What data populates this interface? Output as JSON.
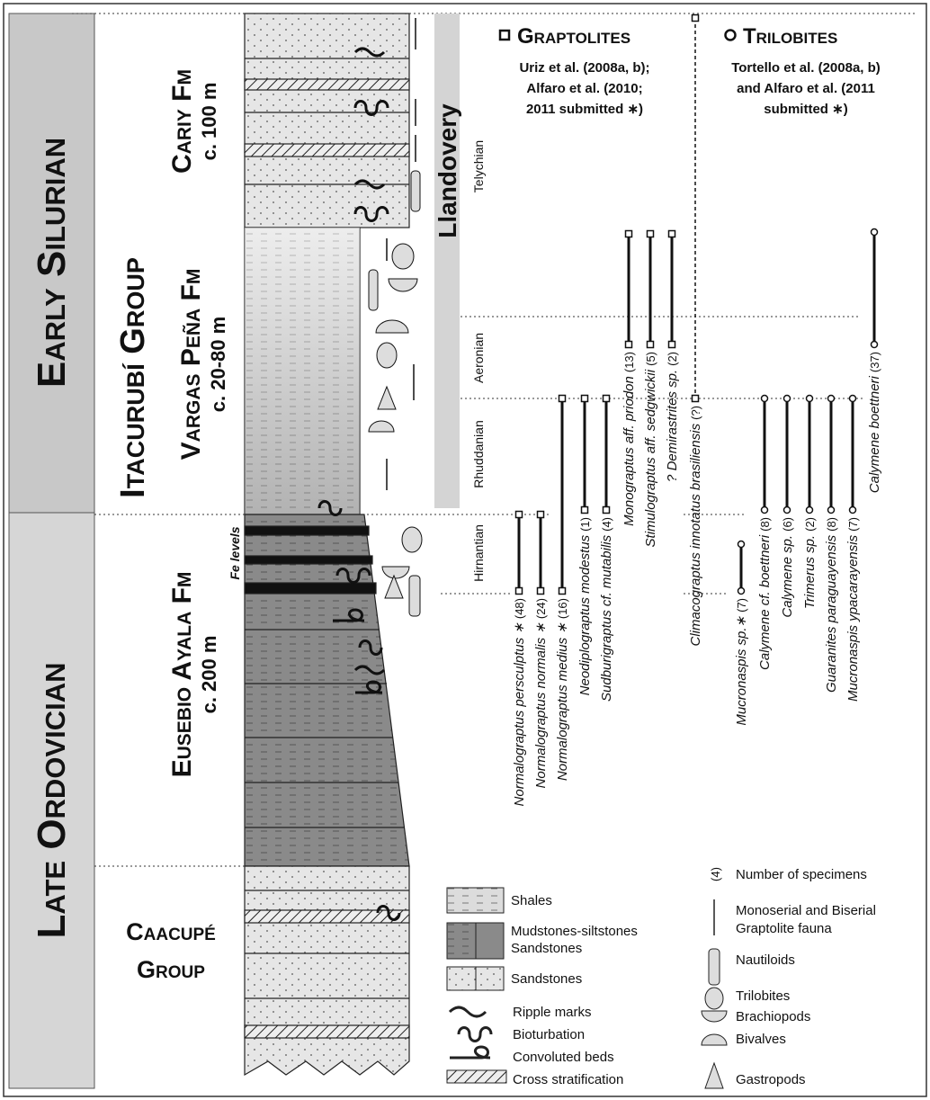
{
  "periods": [
    "Early Silurian",
    "Late Ordovician"
  ],
  "group_upper": "Itacurubí Group",
  "formations": [
    {
      "name": "Cariy Fm",
      "thickness": "c. 100 m"
    },
    {
      "name": "Vargas Peña Fm",
      "thickness": "c. 20-80 m"
    },
    {
      "name": "Eusebio Ayala Fm",
      "thickness": "c. 200 m"
    }
  ],
  "group_lower": [
    "Caacupé",
    "Group"
  ],
  "fe_levels": "Fe levels",
  "series": "Llandovery",
  "stages": [
    "Telychian",
    "Aeronian",
    "Rhuddanian",
    "Hirnantian"
  ],
  "graptolites": {
    "title": "Graptolites",
    "source": [
      "Uriz et al. (2008a, b);",
      "Alfaro et al. (2010;",
      "2011 submitted ∗)"
    ],
    "taxa": [
      {
        "name": "Normalograptus persculptus ∗",
        "count": "(48)"
      },
      {
        "name": "Normalograptus normalis ∗",
        "count": "(24)"
      },
      {
        "name": "Normalograptus medius ∗",
        "count": "(16)"
      },
      {
        "name": "Neodiplograptus modestus",
        "count": "(1)"
      },
      {
        "name": "Sudburigraptus cf. mutabilis",
        "count": "(4)"
      },
      {
        "name": "Monograptus aff. priodon",
        "count": "(13)"
      },
      {
        "name": "Stimulograptus aff. sedgwickii",
        "count": "(5)"
      },
      {
        "name": "? Demirastrites sp.",
        "count": "(2)"
      },
      {
        "name": "Climacograptus innotatus brasiliensis",
        "count": "(?)"
      }
    ]
  },
  "trilobites": {
    "title": "Trilobites",
    "source": [
      "Tortello et al. (2008a, b)",
      "and Alfaro et al. (2011",
      "submitted ∗)"
    ],
    "taxa": [
      {
        "name": "Mucronaspis sp.∗",
        "count": "(7)"
      },
      {
        "name": "Calymene cf. boettneri",
        "count": "(8)"
      },
      {
        "name": "Calymene sp.",
        "count": "(6)"
      },
      {
        "name": "Trimerus sp.",
        "count": "(2)"
      },
      {
        "name": "Guaranites paraguayensis",
        "count": "(8)"
      },
      {
        "name": "Mucronaspis ypacarayensis",
        "count": "(7)"
      },
      {
        "name": "Calymene boettneri",
        "count": "(37)"
      }
    ]
  },
  "legend": {
    "lithology": [
      "Shales",
      "Mudstones-siltstones",
      "Sandstones",
      "Sandstones"
    ],
    "structures": [
      "Ripple marks",
      "Bioturbation",
      "Convoluted beds",
      "Cross stratification"
    ],
    "specimens": {
      "symbol": "(4)",
      "text": "Number of specimens"
    },
    "fossils": [
      "Monoserial and Biserial",
      "Graptolite fauna",
      "Nautiloids",
      "Trilobites",
      "Brachiopods",
      "Bivalves",
      "Gastropods"
    ]
  }
}
